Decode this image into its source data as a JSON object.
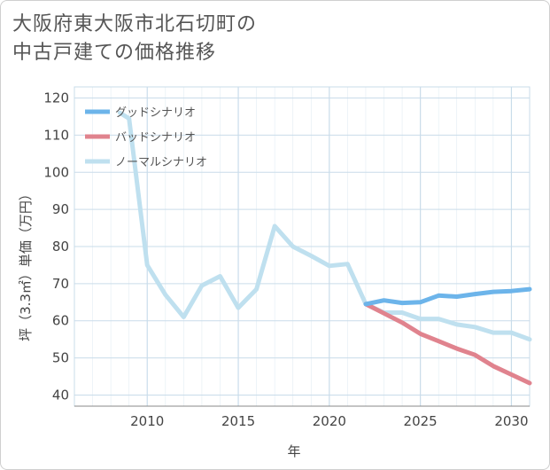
{
  "title_lines": [
    "大阪府東大阪市北石切町の",
    "中古戸建ての価格推移"
  ],
  "colors": {
    "good": "#6cb4ea",
    "bad": "#e0838e",
    "normal": "#bfe0ef",
    "grid": "#c9dcea",
    "axis": "#888888"
  },
  "chart_data": {
    "type": "line",
    "title": "大阪府東大阪市北石切町の中古戸建ての価格推移",
    "xlabel": "年",
    "ylabel": "坪（3.3㎡）単価（万円）",
    "xlim": [
      2006,
      2031
    ],
    "ylim": [
      37,
      123
    ],
    "x_ticks": [
      2010,
      2015,
      2020,
      2025,
      2030
    ],
    "y_ticks": [
      40,
      50,
      60,
      70,
      80,
      90,
      100,
      110,
      120
    ],
    "grid": true,
    "legend_position": "top-left",
    "series": [
      {
        "name": "グッドシナリオ",
        "color_key": "good",
        "points": [
          [
            2022,
            64.5
          ],
          [
            2023,
            65.5
          ],
          [
            2024,
            64.8
          ],
          [
            2025,
            65.0
          ],
          [
            2026,
            66.8
          ],
          [
            2027,
            66.5
          ],
          [
            2028,
            67.2
          ],
          [
            2029,
            67.8
          ],
          [
            2030,
            68.0
          ],
          [
            2031,
            68.5
          ]
        ]
      },
      {
        "name": "バッドシナリオ",
        "color_key": "bad",
        "points": [
          [
            2022,
            64.5
          ],
          [
            2023,
            62.0
          ],
          [
            2024,
            59.5
          ],
          [
            2025,
            56.5
          ],
          [
            2026,
            54.5
          ],
          [
            2027,
            52.5
          ],
          [
            2028,
            50.8
          ],
          [
            2029,
            47.8
          ],
          [
            2030,
            45.5
          ],
          [
            2031,
            43.2
          ]
        ]
      },
      {
        "name": "ノーマルシナリオ",
        "color_key": "normal",
        "points": [
          [
            2008.5,
            116
          ],
          [
            2009,
            114.5
          ],
          [
            2010,
            75
          ],
          [
            2011,
            67
          ],
          [
            2012,
            61
          ],
          [
            2013,
            69.5
          ],
          [
            2014,
            72
          ],
          [
            2015,
            63.5
          ],
          [
            2016,
            68.5
          ],
          [
            2017,
            85.5
          ],
          [
            2018,
            80
          ],
          [
            2019,
            77.5
          ],
          [
            2020,
            74.8
          ],
          [
            2021,
            75.3
          ],
          [
            2022,
            64.5
          ],
          [
            2023,
            62.2
          ],
          [
            2024,
            62.2
          ],
          [
            2025,
            60.5
          ],
          [
            2026,
            60.5
          ],
          [
            2027,
            59.0
          ],
          [
            2028,
            58.3
          ],
          [
            2029,
            56.8
          ],
          [
            2030,
            56.8
          ],
          [
            2031,
            55.0
          ]
        ]
      }
    ]
  }
}
